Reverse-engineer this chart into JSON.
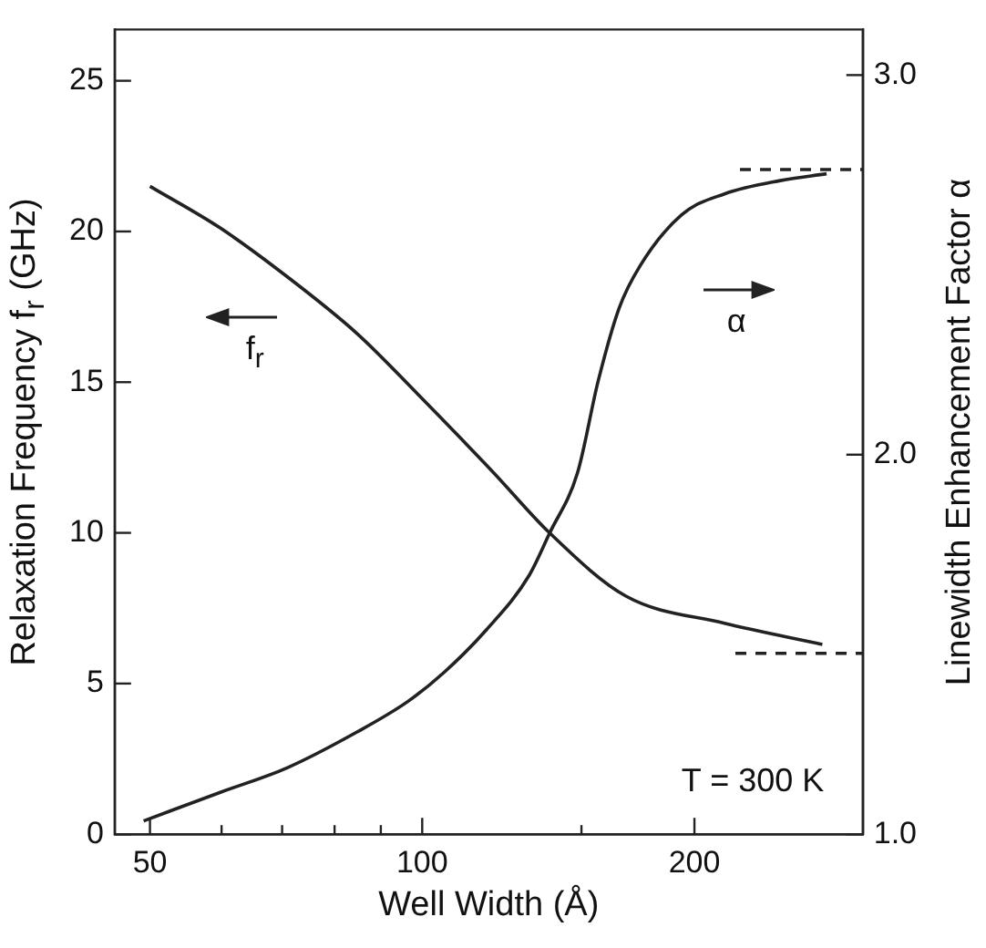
{
  "chart_data": {
    "type": "line",
    "xlabel": "Well Width (Å)",
    "ylabel": "Relaxation Frequency f$_{r}$ (GHz)",
    "y2label": "Linewidth Enhancement Factor α",
    "log": "x",
    "xlim": [
      45.7,
      307
    ],
    "xticks": [
      50,
      {
        "value": 60,
        "label": null
      },
      {
        "value": 70,
        "label": null
      },
      {
        "value": 80,
        "label": null
      },
      {
        "value": 90,
        "label": null
      },
      100,
      {
        "value": 150,
        "label": null
      },
      200
    ],
    "ylim": [
      0,
      26.7
    ],
    "yticks": [
      0,
      5,
      10,
      15,
      20,
      25
    ],
    "y2lim": [
      1.0,
      3.12
    ],
    "y2ticks": [
      {
        "value": 1,
        "label": "1.0"
      },
      {
        "value": 2,
        "label": "2.0"
      },
      {
        "value": 3,
        "label": "3.0"
      }
    ],
    "grid": false,
    "legend": false,
    "marker": "none",
    "line_style": "solid",
    "series": [
      {
        "color": "#222222",
        "x": [
          50,
          59.9,
          70.9,
          84.8,
          98.9,
          119.9,
          138.3,
          168,
          215.9,
          277
        ],
        "values": [
          21.5,
          20.1,
          18.5,
          16.6,
          14.6,
          12.0,
          10.0,
          7.9,
          7.0,
          6.3
        ]
      },
      {
        "color": "#222222",
        "axis": "y2",
        "x": [
          49.2,
          59.9,
          70.9,
          84.8,
          96.3,
          105.9,
          117.8,
          131.3,
          138.3,
          148.5,
          156.6,
          165.1,
          174.1,
          193.6,
          215.9,
          248.9,
          280
        ],
        "values": [
          1.035,
          1.111,
          1.175,
          1.27,
          1.349,
          1.428,
          1.539,
          1.682,
          1.793,
          1.952,
          2.196,
          2.386,
          2.497,
          2.632,
          2.687,
          2.722,
          2.74
        ]
      },
      {
        "color": "#222222",
        "axis": "y2",
        "line_style": "dashed",
        "x": [
          224.6,
          307
        ],
        "values": [
          2.751,
          2.751
        ]
      },
      {
        "color": "#222222",
        "line_style": "dashed",
        "x": [
          222,
          307
        ],
        "values": [
          6.0,
          6.0
        ]
      }
    ],
    "annotations": [
      "f$_{r}$",
      "α",
      "T = 300 K"
    ]
  }
}
